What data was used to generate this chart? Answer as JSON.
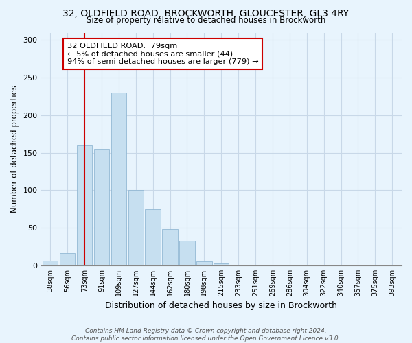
{
  "title": "32, OLDFIELD ROAD, BROCKWORTH, GLOUCESTER, GL3 4RY",
  "subtitle": "Size of property relative to detached houses in Brockworth",
  "xlabel": "Distribution of detached houses by size in Brockworth",
  "ylabel": "Number of detached properties",
  "bar_labels": [
    "38sqm",
    "56sqm",
    "73sqm",
    "91sqm",
    "109sqm",
    "127sqm",
    "144sqm",
    "162sqm",
    "180sqm",
    "198sqm",
    "215sqm",
    "233sqm",
    "251sqm",
    "269sqm",
    "286sqm",
    "304sqm",
    "322sqm",
    "340sqm",
    "357sqm",
    "375sqm",
    "393sqm"
  ],
  "bar_values": [
    6,
    16,
    160,
    155,
    230,
    100,
    75,
    48,
    33,
    5,
    3,
    0,
    1,
    0,
    0,
    0,
    0,
    0,
    0,
    0,
    1
  ],
  "bar_color": "#c6dff0",
  "bar_edge_color": "#92b8d4",
  "vline_x": 2.5,
  "vline_color": "#cc0000",
  "annotation_title": "32 OLDFIELD ROAD:  79sqm",
  "annotation_line1": "← 5% of detached houses are smaller (44)",
  "annotation_line2": "94% of semi-detached houses are larger (779) →",
  "annotation_box_color": "white",
  "annotation_box_edge": "#cc0000",
  "ylim": [
    0,
    310
  ],
  "ylim_display": [
    0,
    300
  ],
  "yticks": [
    0,
    50,
    100,
    150,
    200,
    250,
    300
  ],
  "footnote1": "Contains HM Land Registry data © Crown copyright and database right 2024.",
  "footnote2": "Contains public sector information licensed under the Open Government Licence v3.0.",
  "bg_color": "#e8f4fd",
  "grid_color": "#c8d8e8"
}
